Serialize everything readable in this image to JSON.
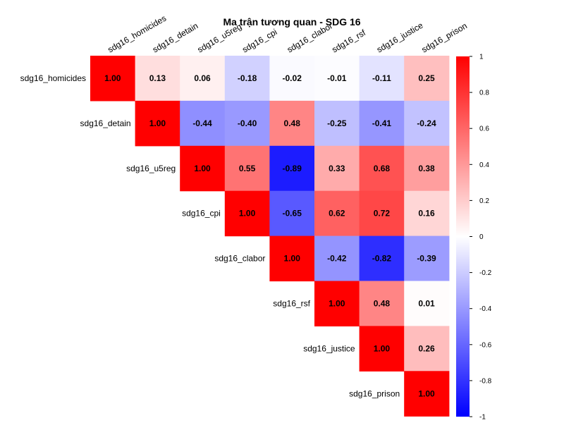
{
  "chart_data": {
    "type": "heatmap",
    "title": "Ma trận tương quan - SDG 16",
    "variables": [
      "sdg16_homicides",
      "sdg16_detain",
      "sdg16_u5reg",
      "sdg16_cpi",
      "sdg16_clabor",
      "sdg16_rsf",
      "sdg16_justice",
      "sdg16_prison"
    ],
    "matrix_upper": [
      [
        "1.00",
        "0.13",
        "0.06",
        "-0.18",
        "-0.02",
        "-0.01",
        "-0.11",
        "0.25"
      ],
      [
        null,
        "1.00",
        "-0.44",
        "-0.40",
        "0.48",
        "-0.25",
        "-0.41",
        "-0.24"
      ],
      [
        null,
        null,
        "1.00",
        "0.55",
        "-0.89",
        "0.33",
        "0.68",
        "0.38"
      ],
      [
        null,
        null,
        null,
        "1.00",
        "-0.65",
        "0.62",
        "0.72",
        "0.16"
      ],
      [
        null,
        null,
        null,
        null,
        "1.00",
        "-0.42",
        "-0.82",
        "-0.39"
      ],
      [
        null,
        null,
        null,
        null,
        null,
        "1.00",
        "0.48",
        "0.01"
      ],
      [
        null,
        null,
        null,
        null,
        null,
        null,
        "1.00",
        "0.26"
      ],
      [
        null,
        null,
        null,
        null,
        null,
        null,
        null,
        "1.00"
      ]
    ],
    "color_scale": {
      "low": "#0000ff",
      "mid": "#ffffff",
      "high": "#ff0000",
      "range": [
        -1,
        1
      ]
    },
    "colorbar_ticks": [
      "1",
      "0.8",
      "0.6",
      "0.4",
      "0.2",
      "0",
      "-0.2",
      "-0.4",
      "-0.6",
      "-0.8",
      "-1"
    ],
    "grid": false,
    "legend": "right"
  }
}
